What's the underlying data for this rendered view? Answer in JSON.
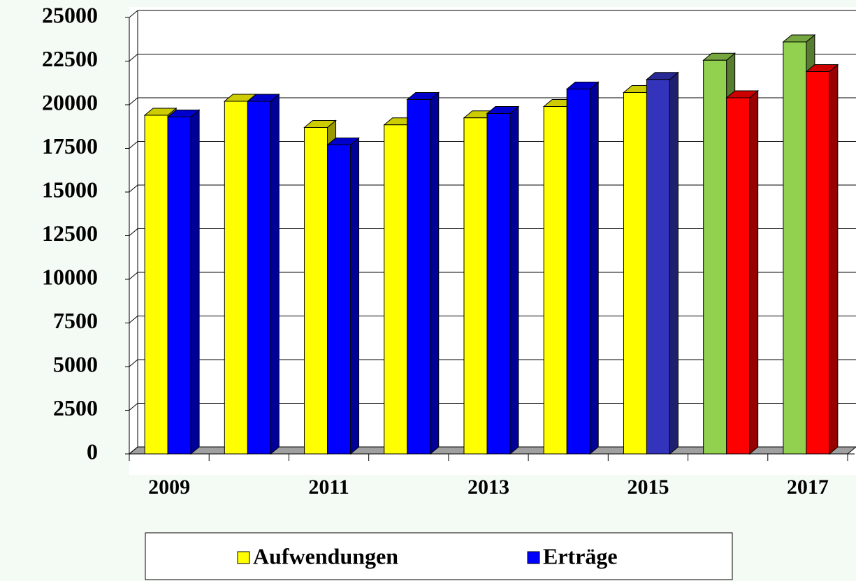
{
  "chart_data": {
    "type": "bar3d",
    "categories": [
      "2009",
      null,
      "2011",
      null,
      "2013",
      null,
      "2015",
      null,
      "2017"
    ],
    "series": [
      {
        "name": "Aufwendungen",
        "color": "#ffff00",
        "colors": [
          "#ffff00",
          "#ffff00",
          "#ffff00",
          "#ffff00",
          "#ffff00",
          "#ffff00",
          "#ffff00",
          "#92d050",
          "#92d050"
        ],
        "values": [
          19400,
          20200,
          18700,
          18850,
          19250,
          19900,
          20700,
          22550,
          23600
        ]
      },
      {
        "name": "Erträge",
        "color": "#0000ff",
        "colors": [
          "#0000ff",
          "#0000ff",
          "#0000ff",
          "#0000ff",
          "#0000ff",
          "#0000ff",
          "#3333bb",
          "#ff0000",
          "#ff0000"
        ],
        "values": [
          19300,
          20200,
          17700,
          20300,
          19500,
          20900,
          21450,
          20400,
          21900
        ]
      }
    ],
    "ylim": [
      0,
      25000
    ],
    "yticks": [
      0,
      2500,
      5000,
      7500,
      10000,
      12500,
      15000,
      17500,
      20000,
      22500,
      25000
    ],
    "grid": true
  }
}
